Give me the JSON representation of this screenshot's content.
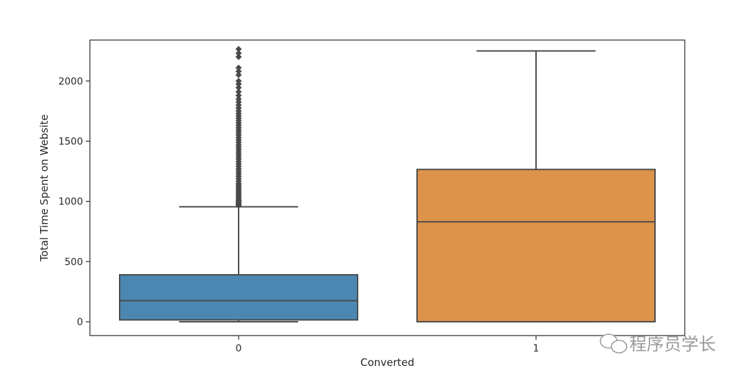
{
  "chart_data": {
    "type": "box",
    "xlabel": "Converted",
    "ylabel": "Total Time Spent on Website",
    "categories": [
      "0",
      "1"
    ],
    "ylim": [
      -115,
      2340
    ],
    "yticks": [
      0,
      500,
      1000,
      1500,
      2000
    ],
    "grid": false,
    "boxes": [
      {
        "category": "0",
        "color": "#4C87B1",
        "whisker_low": 0,
        "q1": 15,
        "median": 175,
        "q3": 390,
        "whisker_high": 955,
        "outliers": [
          965,
          975,
          985,
          995,
          1005,
          1015,
          1030,
          1045,
          1060,
          1075,
          1090,
          1105,
          1120,
          1135,
          1150,
          1170,
          1190,
          1210,
          1230,
          1250,
          1270,
          1290,
          1310,
          1330,
          1350,
          1370,
          1390,
          1410,
          1430,
          1450,
          1470,
          1490,
          1510,
          1530,
          1550,
          1570,
          1590,
          1610,
          1630,
          1650,
          1670,
          1690,
          1710,
          1730,
          1750,
          1775,
          1800,
          1825,
          1850,
          1880,
          1910,
          1945,
          1975,
          2000,
          2050,
          2080,
          2110,
          2200,
          2230,
          2265
        ]
      },
      {
        "category": "1",
        "color": "#DD944A",
        "whisker_low": 0,
        "q1": 0,
        "median": 830,
        "q3": 1265,
        "whisker_high": 2250,
        "outliers": []
      }
    ]
  },
  "watermark": {
    "text": "程序员学长",
    "icon": "wechat-logo-icon"
  }
}
